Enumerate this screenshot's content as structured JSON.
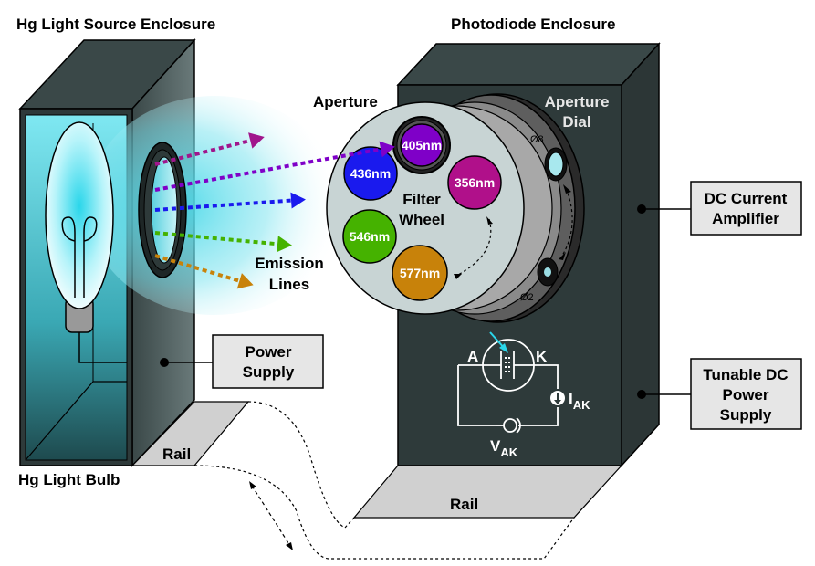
{
  "titles": {
    "light_source": "Hg Light Source Enclosure",
    "photodiode": "Photodiode Enclosure"
  },
  "labels": {
    "aperture": "Aperture",
    "aperture_dial_1": "Aperture",
    "aperture_dial_2": "Dial",
    "filter_wheel_1": "Filter",
    "filter_wheel_2": "Wheel",
    "emission_1": "Emission",
    "emission_2": "Lines",
    "rail_left": "Rail",
    "rail_right": "Rail",
    "bulb": "Hg Light Bulb",
    "dia_large": "Ø8",
    "dia_small": "Ø2",
    "anode": "A",
    "cathode": "K",
    "current_main": "I",
    "current_sub": "AK",
    "voltage_main": "V",
    "voltage_sub": "AK"
  },
  "boxes": {
    "power_supply": [
      "Power",
      "Supply"
    ],
    "dc_amplifier": [
      "DC Current",
      "Amplifier"
    ],
    "tunable_supply": [
      "Tunable DC",
      "Power",
      "Supply"
    ]
  },
  "filters": [
    {
      "label": "405nm",
      "color": "#7f00c8"
    },
    {
      "label": "436nm",
      "color": "#1a1aee"
    },
    {
      "label": "356nm",
      "color": "#b0108a"
    },
    {
      "label": "546nm",
      "color": "#45b200"
    },
    {
      "label": "577nm",
      "color": "#c8820a"
    }
  ],
  "emission_colors": [
    "#a0158c",
    "#7f00c8",
    "#1a1aee",
    "#45b200",
    "#c8820a"
  ],
  "colors": {
    "enclosure_front": "#2e3a3a",
    "enclosure_side": "#3f4c4c",
    "glow": "#48d8e8",
    "rail": "#d0d0d0",
    "box_fill": "#e6e6e6"
  }
}
